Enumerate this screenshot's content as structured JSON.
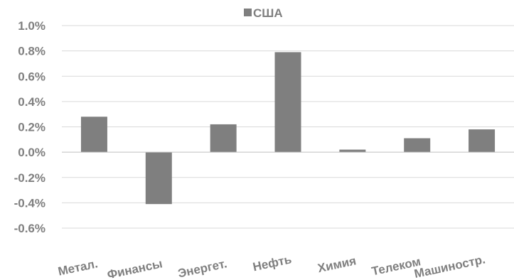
{
  "chart_data": {
    "type": "bar",
    "categories": [
      "Метал.",
      "Финансы",
      "Энергет.",
      "Нефть",
      "Химия",
      "Телеком",
      "Машиностр."
    ],
    "series": [
      {
        "name": "США",
        "values": [
          0.28,
          -0.41,
          0.22,
          0.79,
          0.02,
          0.11,
          0.18
        ],
        "color": "#7f7f7f"
      }
    ],
    "yticks": [
      "1.0%",
      "0.8%",
      "0.6%",
      "0.4%",
      "0.2%",
      "0.0%",
      "-0.2%",
      "-0.4%",
      "-0.6%"
    ],
    "ylim": [
      -0.6,
      1.0
    ],
    "unit": "%",
    "grid": true,
    "legend_position": "top-center",
    "axis_color": "#d9d9d9",
    "label_color": "#7f7f7f"
  }
}
